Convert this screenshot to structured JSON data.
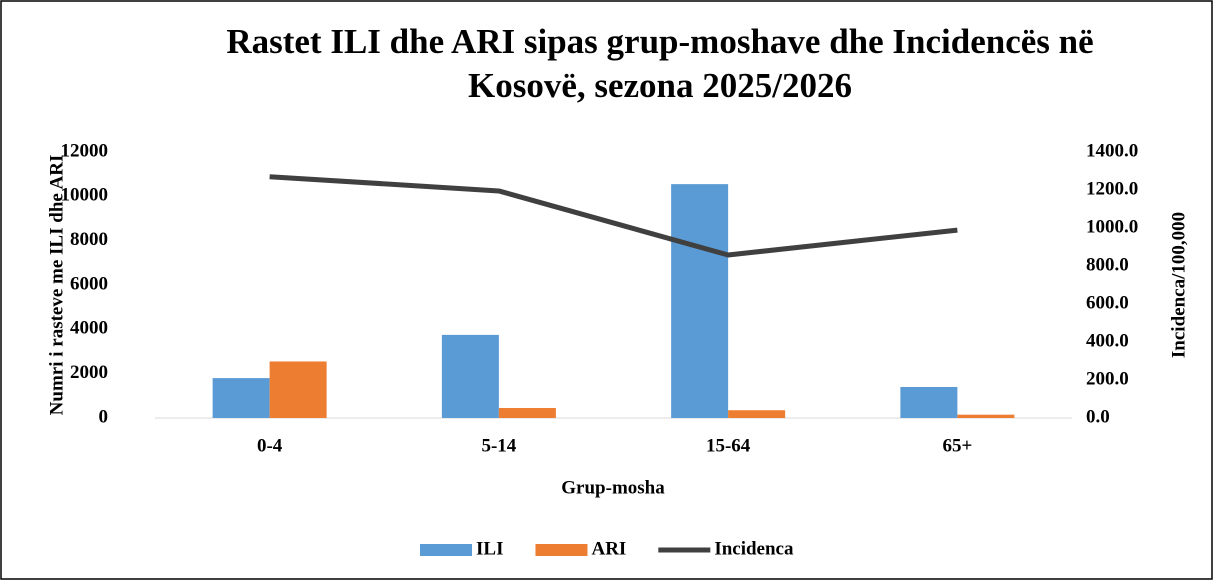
{
  "chart_data": {
    "type": "bar-line",
    "title": "Rastet ILI dhe ARI sipas grup-moshave dhe Incidencës në Kosovë, sezona 2025/2026",
    "xlabel": "Grup-mosha",
    "ylabel": "Numri i rasteve me ILI dhe ARI",
    "y2label": "Incidenca/100,000",
    "categories": [
      "0-4",
      "5-14",
      "15-64",
      "65+"
    ],
    "series": [
      {
        "name": "ILI",
        "type": "bar",
        "color": "#5b9bd5",
        "values": [
          1800,
          3750,
          10550,
          1400
        ]
      },
      {
        "name": "ARI",
        "type": "bar",
        "color": "#ed7d31",
        "values": [
          2550,
          450,
          350,
          150
        ]
      },
      {
        "name": "Incidenca",
        "type": "line",
        "axis": "y2",
        "color": "#404040",
        "values": [
          1270,
          1195,
          858,
          989
        ]
      }
    ],
    "ylim": [
      0,
      12000
    ],
    "yticks": [
      0,
      2000,
      4000,
      6000,
      8000,
      10000,
      12000
    ],
    "y2lim": [
      0,
      1400
    ],
    "y2ticks": [
      {
        "value": 0,
        "label": "0.0"
      },
      {
        "value": 200,
        "label": "200.0"
      },
      {
        "value": 400,
        "label": "400.0"
      },
      {
        "value": 600,
        "label": "600.0"
      },
      {
        "value": 800,
        "label": "800.0"
      },
      {
        "value": 1000,
        "label": "1000.0"
      },
      {
        "value": 1200,
        "label": "1200.0"
      },
      {
        "value": 1400,
        "label": "1400.0"
      }
    ],
    "grid": false,
    "legend": "bottom"
  }
}
